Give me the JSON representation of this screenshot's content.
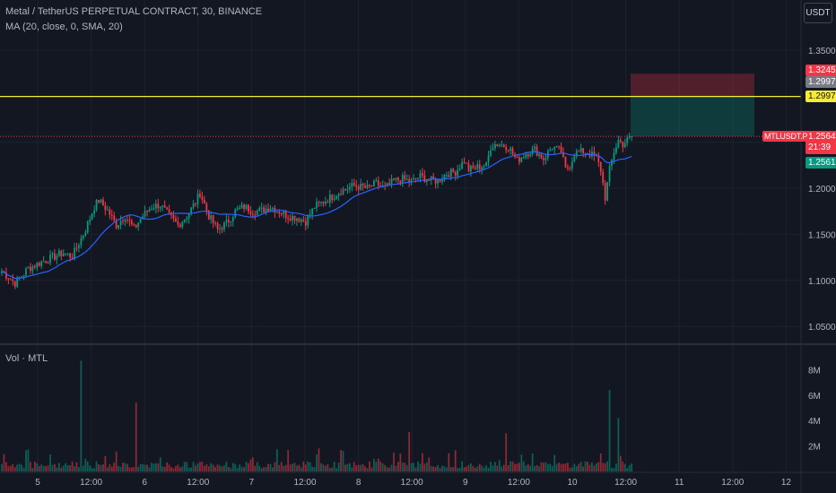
{
  "header": {
    "title": "Metal / TetherUS PERPETUAL CONTRACT, 30, BINANCE",
    "indicator": "MA (20, close, 0, SMA, 20)",
    "volume_label": "Vol · MTL",
    "currency": "USDT"
  },
  "price_axis": {
    "ticks": [
      "1.3500",
      "1.3000",
      "1.2500",
      "1.2000",
      "1.1500",
      "1.1000",
      "1.0500"
    ],
    "badges": {
      "stop_loss": "1.3245",
      "entry": "1.2997",
      "horizontal_line": "1.2997",
      "last_price": "1.2564",
      "countdown": "21:39",
      "bid": "1.2561"
    },
    "symbol_flag": "MTLUSDT.P"
  },
  "volume_axis": {
    "ticks": [
      "8M",
      "6M",
      "4M",
      "2M"
    ]
  },
  "time_axis": {
    "ticks": [
      "5",
      "12:00",
      "6",
      "12:00",
      "7",
      "12:00",
      "8",
      "12:00",
      "9",
      "12:00",
      "10",
      "12:00",
      "11",
      "12:00",
      "12"
    ]
  },
  "colors": {
    "background": "#131722",
    "up": "#089981",
    "down": "#f23645",
    "ma": "#2962ff",
    "hline": "#f7ec34",
    "grid": "#1e222d"
  },
  "chart_data": {
    "type": "candlestick",
    "symbol": "MTLUSDT.P",
    "interval": "30",
    "ylim": [
      1.04,
      1.36
    ],
    "volume_ylim": [
      0,
      9
    ],
    "last_price": 1.2564,
    "horizontal_line": 1.2997,
    "position": {
      "stop_loss": 1.3245,
      "entry": 1.2997,
      "take_profit": 1.2564
    },
    "ma_period": 20,
    "price_path": [
      [
        0,
        1.11
      ],
      [
        6,
        1.097
      ],
      [
        12,
        1.113
      ],
      [
        20,
        1.122
      ],
      [
        28,
        1.13
      ],
      [
        32,
        1.126
      ],
      [
        38,
        1.155
      ],
      [
        42,
        1.18
      ],
      [
        44,
        1.187
      ],
      [
        48,
        1.176
      ],
      [
        52,
        1.16
      ],
      [
        56,
        1.17
      ],
      [
        60,
        1.156
      ],
      [
        64,
        1.17
      ],
      [
        68,
        1.18
      ],
      [
        72,
        1.182
      ],
      [
        76,
        1.17
      ],
      [
        80,
        1.16
      ],
      [
        84,
        1.17
      ],
      [
        88,
        1.185
      ],
      [
        90,
        1.195
      ],
      [
        94,
        1.17
      ],
      [
        98,
        1.155
      ],
      [
        102,
        1.162
      ],
      [
        106,
        1.175
      ],
      [
        110,
        1.18
      ],
      [
        114,
        1.175
      ],
      [
        118,
        1.176
      ],
      [
        122,
        1.18
      ],
      [
        126,
        1.175
      ],
      [
        130,
        1.17
      ],
      [
        134,
        1.168
      ],
      [
        138,
        1.164
      ],
      [
        142,
        1.18
      ],
      [
        148,
        1.188
      ],
      [
        154,
        1.197
      ],
      [
        160,
        1.203
      ],
      [
        166,
        1.2
      ],
      [
        170,
        1.205
      ],
      [
        174,
        1.2
      ],
      [
        178,
        1.208
      ],
      [
        182,
        1.21
      ],
      [
        186,
        1.207
      ],
      [
        190,
        1.213
      ],
      [
        194,
        1.209
      ],
      [
        198,
        1.208
      ],
      [
        202,
        1.216
      ],
      [
        206,
        1.218
      ],
      [
        210,
        1.23
      ],
      [
        212,
        1.22
      ],
      [
        216,
        1.223
      ],
      [
        220,
        1.225
      ],
      [
        222,
        1.245
      ],
      [
        224,
        1.248
      ],
      [
        226,
        1.248
      ],
      [
        230,
        1.245
      ],
      [
        234,
        1.23
      ],
      [
        238,
        1.238
      ],
      [
        242,
        1.242
      ],
      [
        246,
        1.232
      ],
      [
        250,
        1.245
      ],
      [
        254,
        1.24
      ],
      [
        256,
        1.22
      ],
      [
        258,
        1.225
      ],
      [
        260,
        1.238
      ],
      [
        264,
        1.24
      ],
      [
        266,
        1.239
      ],
      [
        270,
        1.233
      ],
      [
        272,
        1.22
      ],
      [
        274,
        1.19
      ],
      [
        276,
        1.22
      ],
      [
        278,
        1.24
      ],
      [
        280,
        1.252
      ],
      [
        282,
        1.248
      ],
      [
        284,
        1.252
      ],
      [
        286,
        1.2564
      ]
    ],
    "volume_spikes": [
      [
        36,
        8.7
      ],
      [
        61,
        5.4
      ],
      [
        185,
        3.1
      ],
      [
        229,
        3.0
      ],
      [
        276,
        6.4
      ],
      [
        280,
        4.2
      ]
    ],
    "time_ticks": [
      "5",
      "12:00",
      "6",
      "12:00",
      "7",
      "12:00",
      "8",
      "12:00",
      "9",
      "12:00",
      "10",
      "12:00",
      "11",
      "12:00",
      "12"
    ]
  }
}
